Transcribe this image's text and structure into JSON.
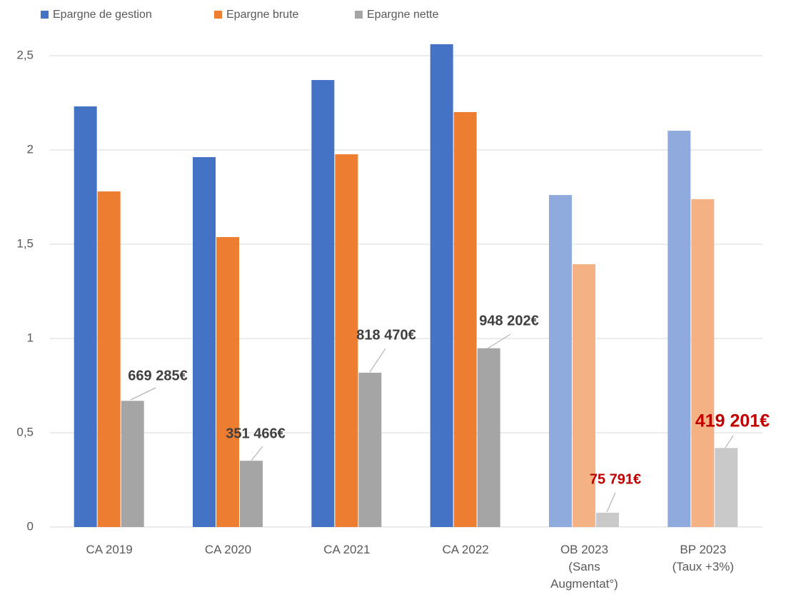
{
  "chart_data": {
    "type": "bar",
    "categories": [
      "CA 2019",
      "CA 2020",
      "CA 2021",
      "CA 2022",
      "OB 2023\n(Sans\nAugmentat°)",
      "BP 2023\n(Taux +3%)"
    ],
    "series": [
      {
        "name": "Epargne de gestion",
        "color": "#4472c4",
        "colors": [
          "#4472c4",
          "#4472c4",
          "#4472c4",
          "#4472c4",
          "#8faadc",
          "#8faadc"
        ],
        "values": [
          2.231,
          1.962,
          2.371,
          2.561,
          1.761,
          2.102
        ]
      },
      {
        "name": "Epargne brute",
        "color": "#ed7d31",
        "colors": [
          "#ed7d31",
          "#ed7d31",
          "#ed7d31",
          "#ed7d31",
          "#f4b183",
          "#f4b183"
        ],
        "values": [
          1.78,
          1.538,
          1.977,
          2.201,
          1.394,
          1.739
        ]
      },
      {
        "name": "Epargne nette",
        "color": "#a5a5a5",
        "colors": [
          "#a5a5a5",
          "#a5a5a5",
          "#a5a5a5",
          "#a5a5a5",
          "#c9c9c9",
          "#c9c9c9"
        ],
        "values": [
          0.669285,
          0.351466,
          0.81847,
          0.948202,
          0.075791,
          0.419201
        ],
        "value_labels": [
          null,
          null,
          null,
          null,
          null,
          null
        ],
        "value_label_colors": [
          "#404040",
          "#404040",
          "#404040",
          "#404040",
          "#c00000",
          "#c00000"
        ]
      }
    ],
    "ylim": [
      0,
      2.5
    ],
    "yticks": [
      0,
      {
        "value": 0.5,
        "label": "0,5"
      },
      1,
      {
        "value": 1.5,
        "label": "1,5"
      },
      2,
      {
        "value": 2.5,
        "label": "2,5"
      }
    ],
    "grid": true,
    "legend": "top"
  }
}
